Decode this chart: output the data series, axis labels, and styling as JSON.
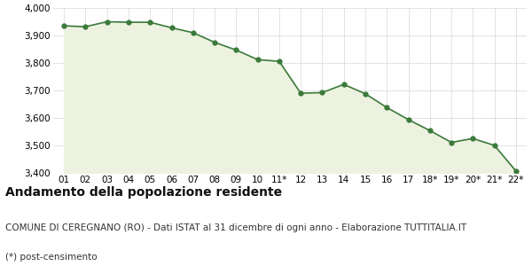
{
  "x_labels": [
    "01",
    "02",
    "03",
    "04",
    "05",
    "06",
    "07",
    "08",
    "09",
    "10",
    "11*",
    "12",
    "13",
    "14",
    "15",
    "16",
    "17",
    "18*",
    "19*",
    "20*",
    "21*",
    "22*"
  ],
  "y_values": [
    3935,
    3932,
    3950,
    3948,
    3948,
    3928,
    3910,
    3875,
    3847,
    3812,
    3806,
    3690,
    3692,
    3722,
    3688,
    3638,
    3594,
    3554,
    3511,
    3525,
    3500,
    3407
  ],
  "line_color": "#3a7a3a",
  "fill_color": "#edf2e0",
  "marker_color": "#3a7a3a",
  "background_color": "#ffffff",
  "grid_color": "#d8d8d8",
  "ylim": [
    3400,
    4000
  ],
  "yticks": [
    3400,
    3500,
    3600,
    3700,
    3800,
    3900,
    4000
  ],
  "title": "Andamento della popolazione residente",
  "subtitle": "COMUNE DI CEREGNANO (RO) - Dati ISTAT al 31 dicembre di ogni anno - Elaborazione TUTTITALIA.IT",
  "footnote": "(*) post-censimento",
  "title_fontsize": 10,
  "subtitle_fontsize": 7.5,
  "footnote_fontsize": 7.5,
  "tick_fontsize": 7.5
}
